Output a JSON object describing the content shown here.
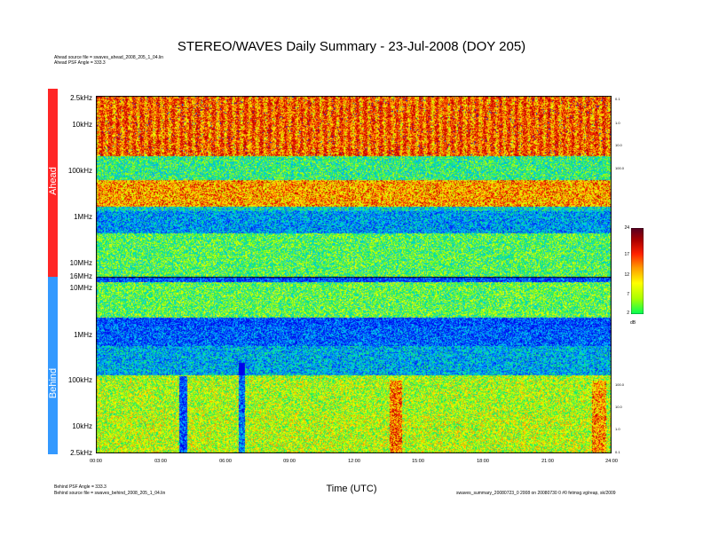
{
  "chart_data": {
    "type": "heatmap",
    "title": "STEREO/WAVES Daily Summary - 23-Jul-2008 (DOY 205)",
    "xlabel": "Time (UTC)",
    "x_ticks": [
      "00:00",
      "03:00",
      "06:00",
      "09:00",
      "12:00",
      "15:00",
      "18:00",
      "21:00",
      "24:00"
    ],
    "panels": [
      {
        "name": "Ahead",
        "color": "#ff2626",
        "y_ticks": [
          "2.5kHz",
          "10kHz",
          "100kHz",
          "1MHz",
          "10MHz",
          "16MHz"
        ]
      },
      {
        "name": "Behind",
        "color": "#3399ff",
        "y_ticks": [
          "10MHz",
          "1MHz",
          "100kHz",
          "10kHz",
          "2.5kHz"
        ]
      }
    ],
    "right_ticks_ahead": [
      "0.1",
      "1.0",
      "10.0",
      "100.0"
    ],
    "right_ticks_behind": [
      "100.0",
      "10.0",
      "1.0",
      "0.1"
    ],
    "colorbar": {
      "ticks": [
        "24",
        "17",
        "12",
        "7",
        "2"
      ],
      "unit": "dB",
      "range": [
        2,
        24
      ],
      "colors": [
        "#00ff55",
        "#aaff00",
        "#ffff00",
        "#ff9900",
        "#ff2200",
        "#aa0000",
        "#550022"
      ]
    }
  },
  "meta": {
    "ahead_source": "Ahead source file = swaves_ahead_2008_205_1_04.lin",
    "ahead_psf": "Ahead PSF Angle = 333.3",
    "behind_psf": "Behind PSF Angle = 333.3",
    "behind_source": "Behind source file = swaves_behind_2008_205_1_04.lin",
    "footer": "swaves_summary_20080723_0 2008 on 20080730 0 #0 fetmsg.vg/reap, sk/2009"
  }
}
